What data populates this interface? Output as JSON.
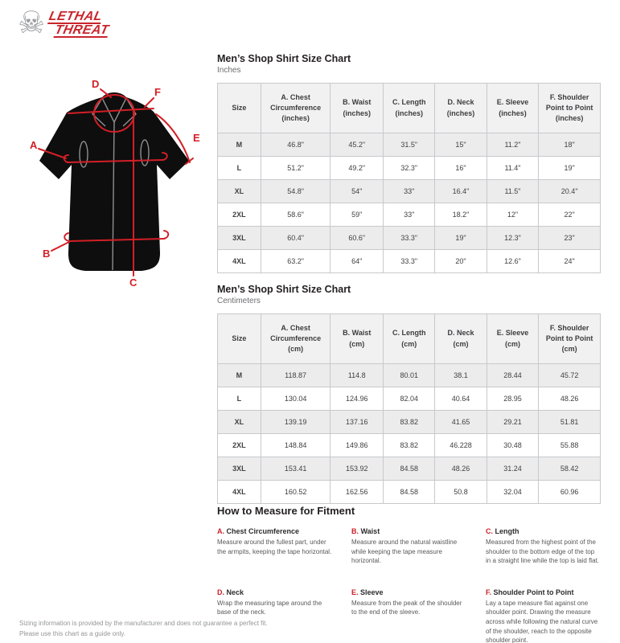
{
  "brand": {
    "line1": "LETHAL",
    "line2": "THREAT"
  },
  "diagram": {
    "labels": [
      "A",
      "B",
      "C",
      "D",
      "E",
      "F"
    ]
  },
  "tables": [
    {
      "title": "Men’s Shop Shirt Size Chart",
      "subtitle": "Inches",
      "columns": [
        "Size",
        "A. Chest Circumference (inches)",
        "B. Waist (inches)",
        "C. Length (inches)",
        "D. Neck (inches)",
        "E. Sleeve (inches)",
        "F. Shoulder Point to Point (inches)"
      ],
      "rows": [
        [
          "M",
          "46.8\"",
          "45.2\"",
          "31.5\"",
          "15\"",
          "11.2\"",
          "18\""
        ],
        [
          "L",
          "51.2\"",
          "49.2\"",
          "32.3\"",
          "16\"",
          "11.4\"",
          "19\""
        ],
        [
          "XL",
          "54.8\"",
          "54\"",
          "33\"",
          "16.4\"",
          "11.5\"",
          "20.4\""
        ],
        [
          "2XL",
          "58.6\"",
          "59\"",
          "33\"",
          "18.2\"",
          "12\"",
          "22\""
        ],
        [
          "3XL",
          "60.4\"",
          "60.6\"",
          "33.3\"",
          "19\"",
          "12.3\"",
          "23\""
        ],
        [
          "4XL",
          "63.2\"",
          "64\"",
          "33.3\"",
          "20\"",
          "12.6\"",
          "24\""
        ]
      ]
    },
    {
      "title": "Men’s Shop Shirt Size Chart",
      "subtitle": "Centimeters",
      "columns": [
        "Size",
        "A. Chest Circumference (cm)",
        "B. Waist (cm)",
        "C. Length (cm)",
        "D. Neck (cm)",
        "E. Sleeve (cm)",
        "F. Shoulder Point to Point (cm)"
      ],
      "rows": [
        [
          "M",
          "118.87",
          "114.8",
          "80.01",
          "38.1",
          "28.44",
          "45.72"
        ],
        [
          "L",
          "130.04",
          "124.96",
          "82.04",
          "40.64",
          "28.95",
          "48.26"
        ],
        [
          "XL",
          "139.19",
          "137.16",
          "83.82",
          "41.65",
          "29.21",
          "51.81"
        ],
        [
          "2XL",
          "148.84",
          "149.86",
          "83.82",
          "46.228",
          "30.48",
          "55.88"
        ],
        [
          "3XL",
          "153.41",
          "153.92",
          "84.58",
          "48.26",
          "31.24",
          "58.42"
        ],
        [
          "4XL",
          "160.52",
          "162.56",
          "84.58",
          "50.8",
          "32.04",
          "60.96"
        ]
      ]
    }
  ],
  "measure": {
    "heading": "How to Measure for Fitment",
    "items": [
      {
        "letter": "A.",
        "title": "Chest Circumference",
        "desc": "Measure around the fullest part, under the armpits, keeping the tape horizontal."
      },
      {
        "letter": "B.",
        "title": "Waist",
        "desc": "Measure around the natural waistline while keeping the tape measure horizontal."
      },
      {
        "letter": "C.",
        "title": "Length",
        "desc": "Measured from the highest point of the shoulder to the bottom edge of the top in a straight line while the top is laid flat."
      },
      {
        "letter": "D.",
        "title": "Neck",
        "desc": "Wrap the measuring tape around the base of the neck."
      },
      {
        "letter": "E.",
        "title": "Sleeve",
        "desc": "Measure from the peak of the shoulder to the end of the sleeve."
      },
      {
        "letter": "F.",
        "title": "Shoulder Point to Point",
        "desc": "Lay a tape measure flat against one shoulder point. Drawing the measure across while following the natural curve of the shoulder, reach to the opposite shoulder point."
      }
    ]
  },
  "footer": {
    "line1": "Sizing information is provided by the manufacturer and does not guarantee a perfect fit.",
    "line2": "Please use this chart as a guide only."
  }
}
